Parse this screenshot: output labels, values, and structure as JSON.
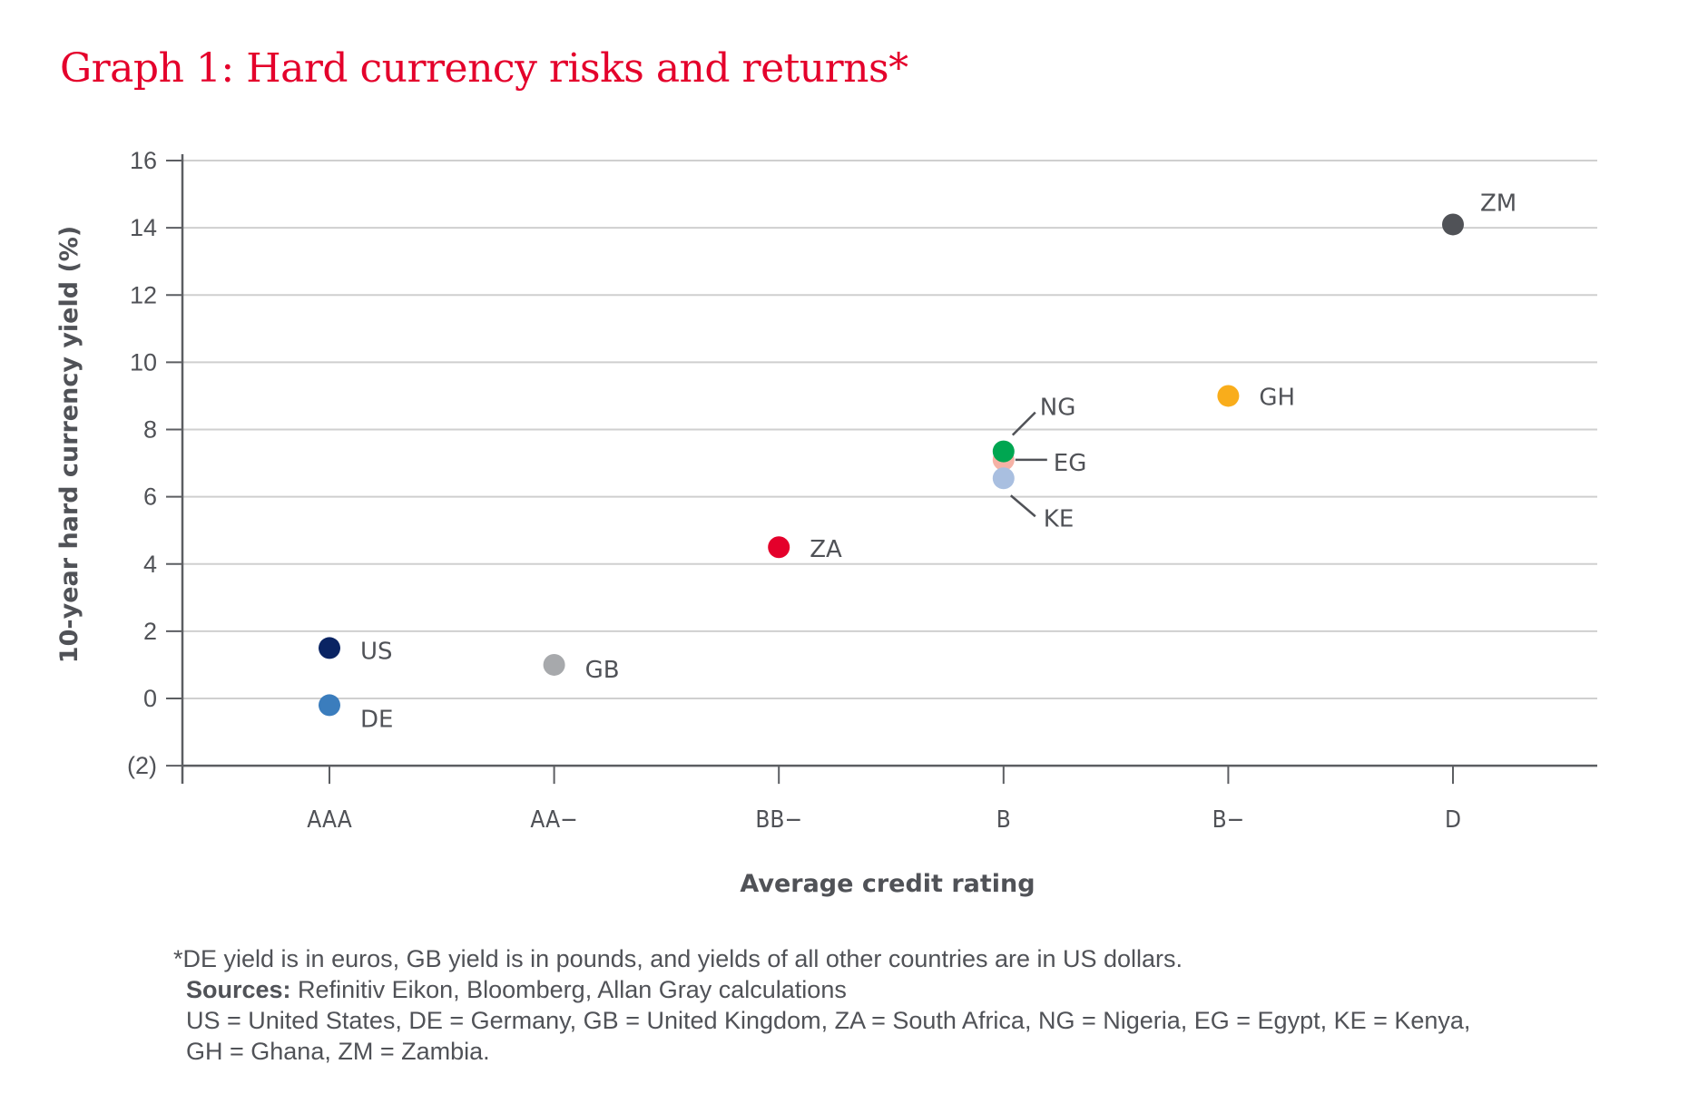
{
  "title": "Graph 1: Hard currency risks and returns*",
  "chart_data": {
    "type": "scatter",
    "title": "Graph 1: Hard currency risks and returns*",
    "xlabel": "Average credit rating",
    "ylabel": "10-year hard currency yield (%)",
    "categories": [
      "AAA",
      "AA−",
      "BB−",
      "B",
      "B−",
      "D"
    ],
    "ylim": [
      -2,
      16
    ],
    "yticks": [
      16,
      14,
      12,
      10,
      8,
      6,
      4,
      2,
      0,
      -2
    ],
    "ytick_labels": [
      "16",
      "14",
      "12",
      "10",
      "8",
      "6",
      "4",
      "2",
      "0",
      "(2)"
    ],
    "grid": true,
    "points": [
      {
        "label": "US",
        "category": "AAA",
        "y": 1.5,
        "color": "#0a2463"
      },
      {
        "label": "DE",
        "category": "AAA",
        "y": -0.2,
        "color": "#3b7dbd"
      },
      {
        "label": "GB",
        "category": "AA−",
        "y": 1.0,
        "color": "#a7a9ac"
      },
      {
        "label": "ZA",
        "category": "BB−",
        "y": 4.5,
        "color": "#e4002b"
      },
      {
        "label": "EG",
        "category": "B",
        "y": 7.1,
        "color": "#f6b2a6"
      },
      {
        "label": "NG",
        "category": "B",
        "y": 7.35,
        "color": "#00a651"
      },
      {
        "label": "KE",
        "category": "B",
        "y": 6.55,
        "color": "#a9bfe0"
      },
      {
        "label": "GH",
        "category": "B−",
        "y": 9.0,
        "color": "#f9ad1b"
      },
      {
        "label": "ZM",
        "category": "D",
        "y": 14.1,
        "color": "#505257"
      }
    ]
  },
  "colors": {
    "title": "#e4002b",
    "negative_tick": "#e4002b",
    "text": "#505257",
    "grid": "#cfcfcf",
    "axis": "#5c5e62"
  },
  "notes": {
    "line1": "*DE yield is in euros, GB yield is in pounds, and yields of all other countries are in US dollars.",
    "sources_label": "Sources:",
    "sources_text": " Refinitiv Eikon, Bloomberg, Allan Gray calculations",
    "line3": "US = United States, DE = Germany, GB = United Kingdom, ZA = South Africa, NG = Nigeria, EG = Egypt, KE = Kenya,",
    "line4": "GH = Ghana, ZM = Zambia."
  }
}
